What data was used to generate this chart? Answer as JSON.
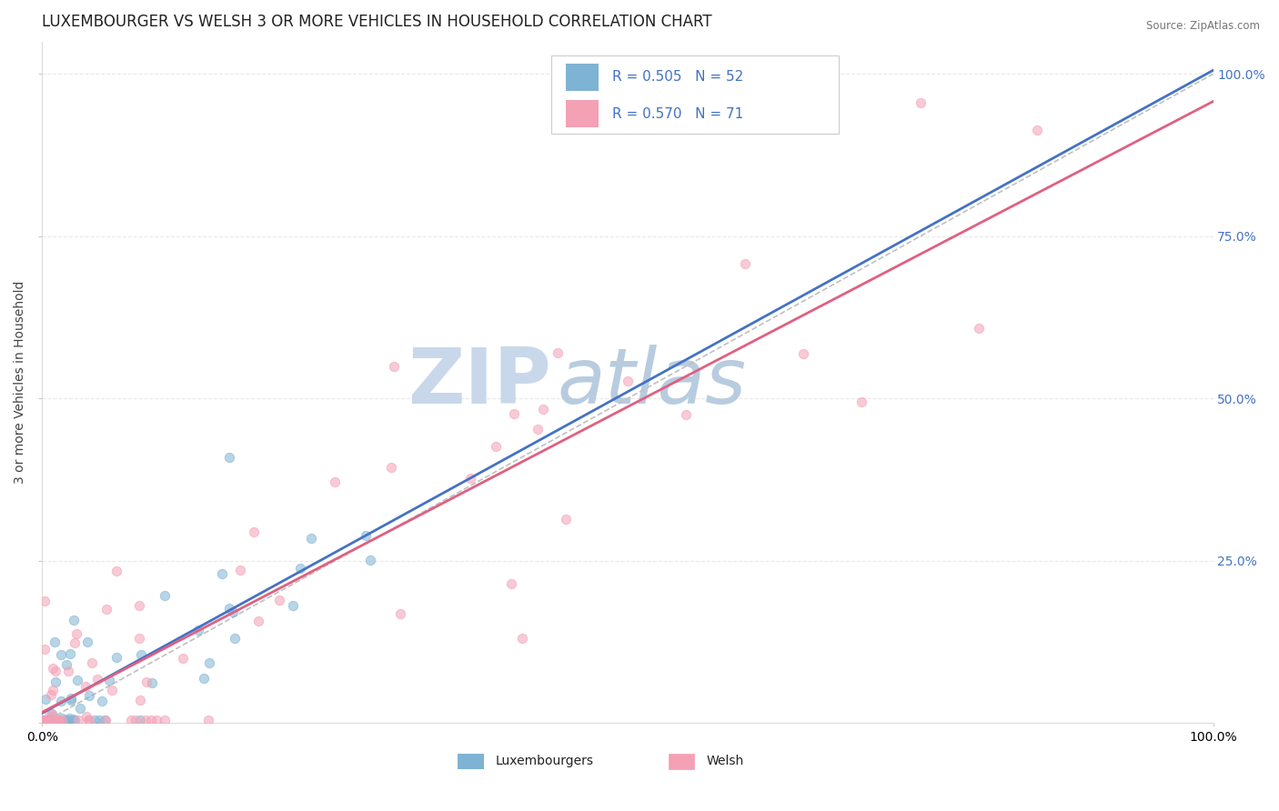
{
  "title": "LUXEMBOURGER VS WELSH 3 OR MORE VEHICLES IN HOUSEHOLD CORRELATION CHART",
  "source": "Source: ZipAtlas.com",
  "ylabel": "3 or more Vehicles in Household",
  "legend_r_lux": "R = 0.505",
  "legend_n_lux": "N = 52",
  "legend_r_welsh": "R = 0.570",
  "legend_n_welsh": "N = 71",
  "color_lux": "#7fb3d3",
  "color_welsh": "#f4a0b5",
  "color_lux_line": "#4472c4",
  "color_welsh_line": "#e06080",
  "color_ref_line": "#c0c0c0",
  "color_right_axis": "#4472c4",
  "watermark_zip": "#c8d8ea",
  "watermark_atlas": "#b8cce0",
  "title_fontsize": 12,
  "axis_fontsize": 10,
  "tick_fontsize": 10,
  "background_color": "#ffffff",
  "plot_bg_color": "#ffffff",
  "grid_color": "#e8e8e8",
  "grid_style": "--"
}
